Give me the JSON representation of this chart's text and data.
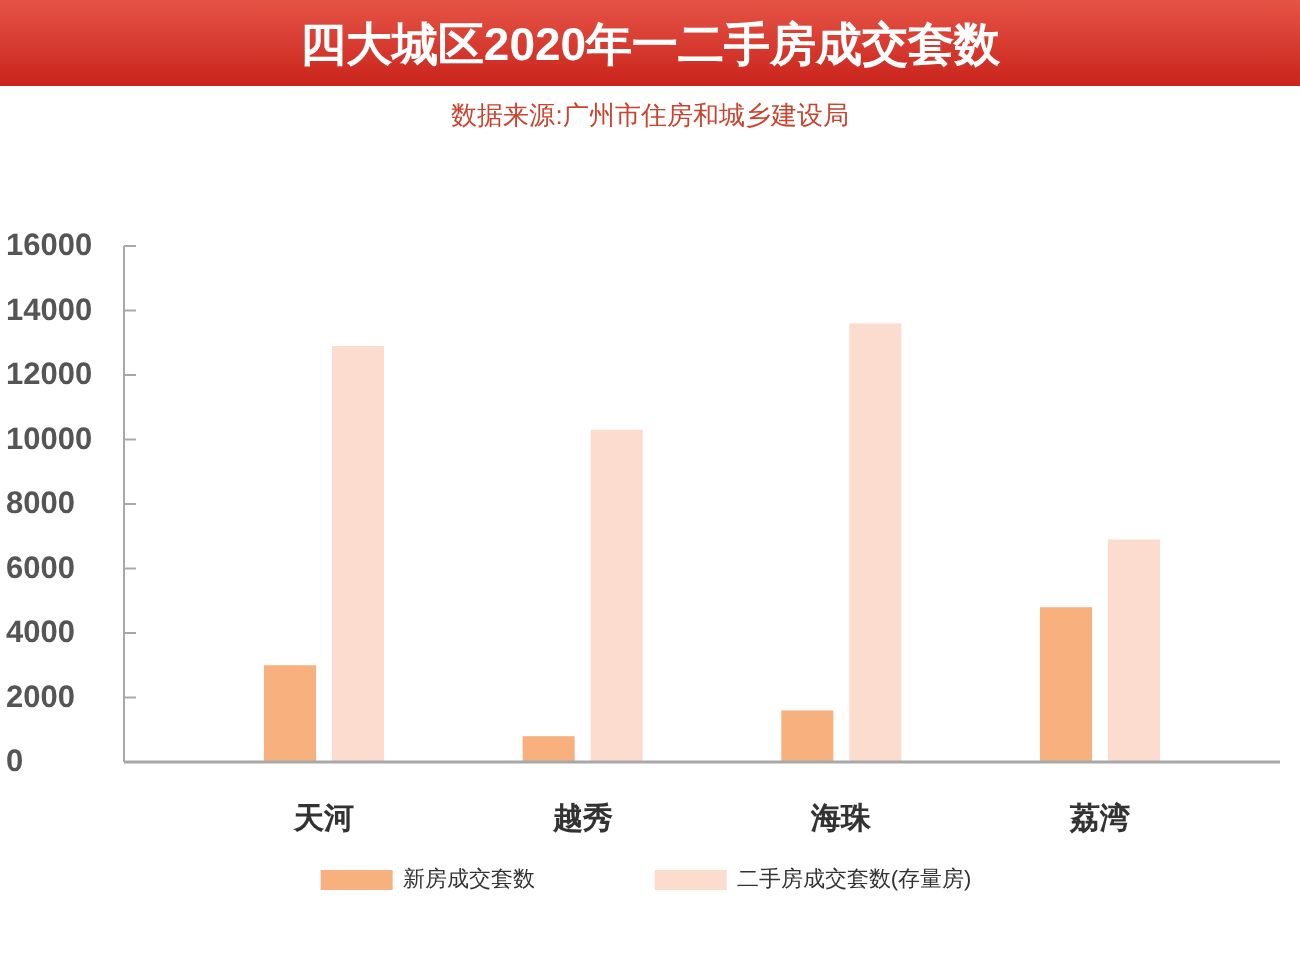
{
  "chart_data": {
    "type": "bar",
    "title": "四大城区2020年一二手房成交套数",
    "subtitle": "数据来源:广州市住房和城乡建设局",
    "categories": [
      "天河",
      "越秀",
      "海珠",
      "荔湾"
    ],
    "series": [
      {
        "name": "新房成交套数",
        "color": "#f8b07e",
        "values": [
          3000,
          800,
          1600,
          4800
        ]
      },
      {
        "name": "二手房成交套数(存量房)",
        "color": "#fddcd0",
        "values": [
          12900,
          10300,
          13600,
          6900
        ]
      }
    ],
    "ylim": [
      0,
      16000
    ],
    "yticks": [
      0,
      2000,
      4000,
      6000,
      8000,
      10000,
      12000,
      14000,
      16000
    ],
    "grid": false,
    "legend": "bottom"
  }
}
